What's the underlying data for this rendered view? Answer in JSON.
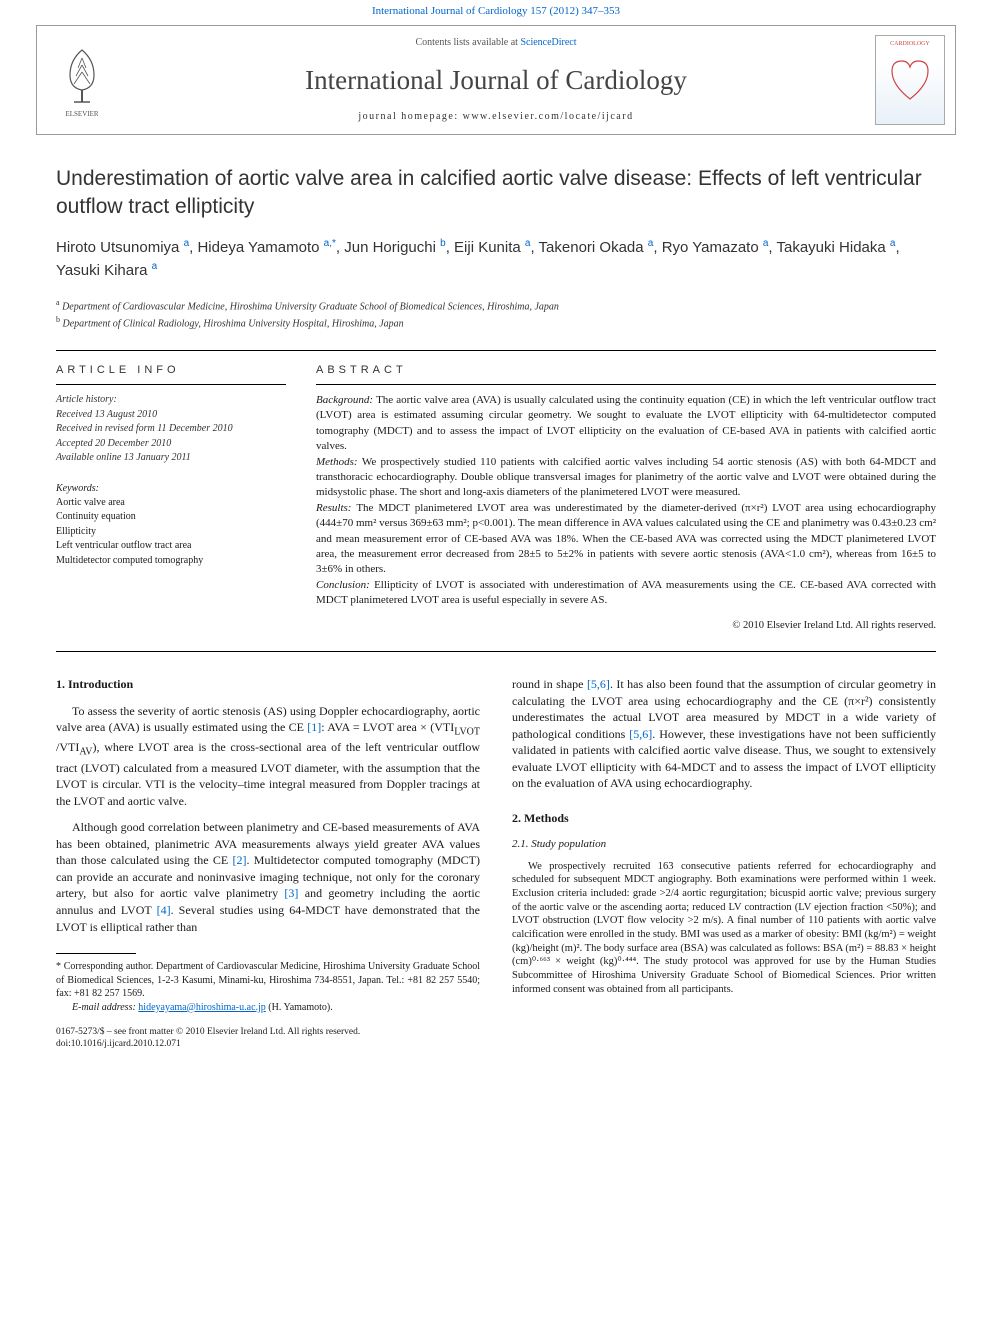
{
  "topLink": {
    "journal": "International Journal of Cardiology",
    "cite": "157 (2012) 347–353"
  },
  "headerBox": {
    "contentsPrefix": "Contents lists available at ",
    "contentsLink": "ScienceDirect",
    "journalName": "International Journal of Cardiology",
    "homepagePrefix": "journal homepage: ",
    "homepage": "www.elsevier.com/locate/ijcard",
    "coverLabel": "CARDIOLOGY"
  },
  "title": "Underestimation of aortic valve area in calcified aortic valve disease: Effects of left ventricular outflow tract ellipticity",
  "authors": [
    {
      "name": "Hiroto Utsunomiya",
      "aff": "a"
    },
    {
      "name": "Hideya Yamamoto",
      "aff": "a,*"
    },
    {
      "name": "Jun Horiguchi",
      "aff": "b"
    },
    {
      "name": "Eiji Kunita",
      "aff": "a"
    },
    {
      "name": "Takenori Okada",
      "aff": "a"
    },
    {
      "name": "Ryo Yamazato",
      "aff": "a"
    },
    {
      "name": "Takayuki Hidaka",
      "aff": "a"
    },
    {
      "name": "Yasuki Kihara",
      "aff": "a"
    }
  ],
  "affiliations": [
    {
      "lbl": "a",
      "text": "Department of Cardiovascular Medicine, Hiroshima University Graduate School of Biomedical Sciences, Hiroshima, Japan"
    },
    {
      "lbl": "b",
      "text": "Department of Clinical Radiology, Hiroshima University Hospital, Hiroshima, Japan"
    }
  ],
  "articleInfo": {
    "heading": "ARTICLE INFO",
    "historyLabel": "Article history:",
    "received": "Received 13 August 2010",
    "revised": "Received in revised form 11 December 2010",
    "accepted": "Accepted 20 December 2010",
    "online": "Available online 13 January 2011",
    "keywordsLabel": "Keywords:",
    "keywords": [
      "Aortic valve area",
      "Continuity equation",
      "Ellipticity",
      "Left ventricular outflow tract area",
      "Multidetector computed tomography"
    ]
  },
  "abstract": {
    "heading": "ABSTRACT",
    "background": "The aortic valve area (AVA) is usually calculated using the continuity equation (CE) in which the left ventricular outflow tract (LVOT) area is estimated assuming circular geometry. We sought to evaluate the LVOT ellipticity with 64-multidetector computed tomography (MDCT) and to assess the impact of LVOT ellipticity on the evaluation of CE-based AVA in patients with calcified aortic valves.",
    "methods": "We prospectively studied 110 patients with calcified aortic valves including 54 aortic stenosis (AS) with both 64-MDCT and transthoracic echocardiography. Double oblique transversal images for planimetry of the aortic valve and LVOT were obtained during the midsystolic phase. The short and long-axis diameters of the planimetered LVOT were measured.",
    "results": "The MDCT planimetered LVOT area was underestimated by the diameter-derived (π×r²) LVOT area using echocardiography (444±70 mm² versus 369±63 mm²; p<0.001). The mean difference in AVA values calculated using the CE and planimetry was 0.43±0.23 cm² and mean measurement error of CE-based AVA was 18%. When the CE-based AVA was corrected using the MDCT planimetered LVOT area, the measurement error decreased from 28±5 to 5±2% in patients with severe aortic stenosis (AVA<1.0 cm²), whereas from 16±5 to 3±6% in others.",
    "conclusion": "Ellipticity of LVOT is associated with underestimation of AVA measurements using the CE. CE-based AVA corrected with MDCT planimetered LVOT area is useful especially in severe AS.",
    "copyright": "© 2010 Elsevier Ireland Ltd. All rights reserved."
  },
  "intro": {
    "heading": "1. Introduction",
    "p1a": "To assess the severity of aortic stenosis (AS) using Doppler echocardiography, aortic valve area (AVA) is usually estimated using the CE ",
    "p1ref": "[1]",
    "p1b": ": AVA = LVOT area × (VTI",
    "p1c": " /VTI",
    "p1d": "), where LVOT area is the cross-sectional area of the left ventricular outflow tract (LVOT) calculated from a measured LVOT diameter, with the assumption that the LVOT is circular. VTI is the velocity–time integral measured from Doppler tracings at the LVOT and aortic valve.",
    "p2a": "Although good correlation between planimetry and CE-based measurements of AVA has been obtained, planimetric AVA measurements always yield greater AVA values than those calculated using the CE ",
    "p2ref1": "[2]",
    "p2b": ". Multidetector computed tomography (MDCT) can provide an accurate and noninvasive imaging technique, not only for the coronary artery, but also for aortic valve planimetry ",
    "p2ref2": "[3]",
    "p2c": " and geometry including the aortic annulus and LVOT ",
    "p2ref3": "[4]",
    "p2d": ". Several studies using 64-MDCT have demonstrated that the LVOT is elliptical rather than",
    "p3a": "round in shape ",
    "p3ref1": "[5,6]",
    "p3b": ". It has also been found that the assumption of circular geometry in calculating the LVOT area using echocardiography and the CE (π×r²) consistently underestimates the actual LVOT area measured by MDCT in a wide variety of pathological conditions ",
    "p3ref2": "[5,6]",
    "p3c": ". However, these investigations have not been sufficiently validated in patients with calcified aortic valve disease. Thus, we sought to extensively evaluate LVOT ellipticity with 64-MDCT and to assess the impact of LVOT ellipticity on the evaluation of AVA using echocardiography."
  },
  "methods": {
    "heading": "2. Methods",
    "sub1": "2.1. Study population",
    "p1": "We prospectively recruited 163 consecutive patients referred for echocardiography and scheduled for subsequent MDCT angiography. Both examinations were performed within 1 week. Exclusion criteria included: grade >2/4 aortic regurgitation; bicuspid aortic valve; previous surgery of the aortic valve or the ascending aorta; reduced LV contraction (LV ejection fraction <50%); and LVOT obstruction (LVOT flow velocity >2 m/s). A final number of 110 patients with aortic valve calcification were enrolled in the study. BMI was used as a marker of obesity: BMI (kg/m²) = weight (kg)/height (m)². The body surface area (BSA) was calculated as follows: BSA (m²) = 88.83 × height (cm)⁰·⁶⁶³ × weight (kg)⁰·⁴⁴⁴. The study protocol was approved for use by the Human Studies Subcommittee of Hiroshima University Graduate School of Biomedical Sciences. Prior written informed consent was obtained from all participants."
  },
  "footnote": {
    "correspLabel": "* ",
    "corresp": "Corresponding author. Department of Cardiovascular Medicine, Hiroshima University Graduate School of Biomedical Sciences, 1-2-3 Kasumi, Minami-ku, Hiroshima 734-8551, Japan. Tel.: +81 82 257 5540; fax: +81 82 257 1569.",
    "emailLabel": "E-mail address: ",
    "email": "hideyayama@hiroshima-u.ac.jp",
    "emailSuffix": " (H. Yamamoto)."
  },
  "bottom": {
    "line1": "0167-5273/$ – see front matter © 2010 Elsevier Ireland Ltd. All rights reserved.",
    "line2": "doi:10.1016/j.ijcard.2010.12.071"
  },
  "colors": {
    "link": "#0066cc",
    "text": "#1a1a1a",
    "rule": "#000000"
  }
}
